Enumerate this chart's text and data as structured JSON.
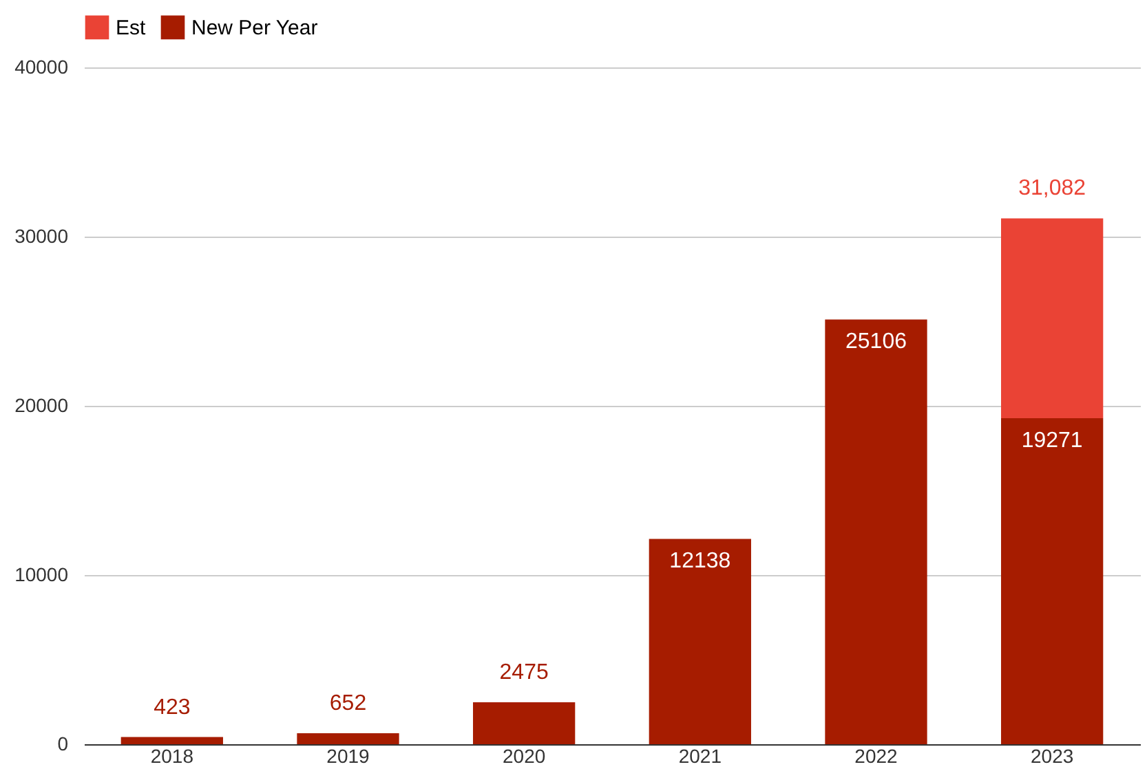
{
  "chart_data": {
    "type": "bar",
    "stacked": true,
    "categories": [
      "2018",
      "2019",
      "2020",
      "2021",
      "2022",
      "2023"
    ],
    "series": [
      {
        "name": "New Per Year",
        "color": "#a61c00",
        "values": [
          423,
          652,
          2475,
          12138,
          25106,
          19271
        ],
        "value_labels": [
          "423",
          "652",
          "2475",
          "12138",
          "25106",
          "19271"
        ]
      },
      {
        "name": "Est",
        "color": "#ea4335",
        "values": [
          null,
          null,
          null,
          null,
          null,
          11811
        ]
      }
    ],
    "totals": [
      null,
      null,
      null,
      null,
      null,
      "31,082"
    ],
    "ylim": [
      0,
      40000
    ],
    "yticks": [
      0,
      10000,
      20000,
      30000,
      40000
    ],
    "grid": "y",
    "legend": "top"
  }
}
